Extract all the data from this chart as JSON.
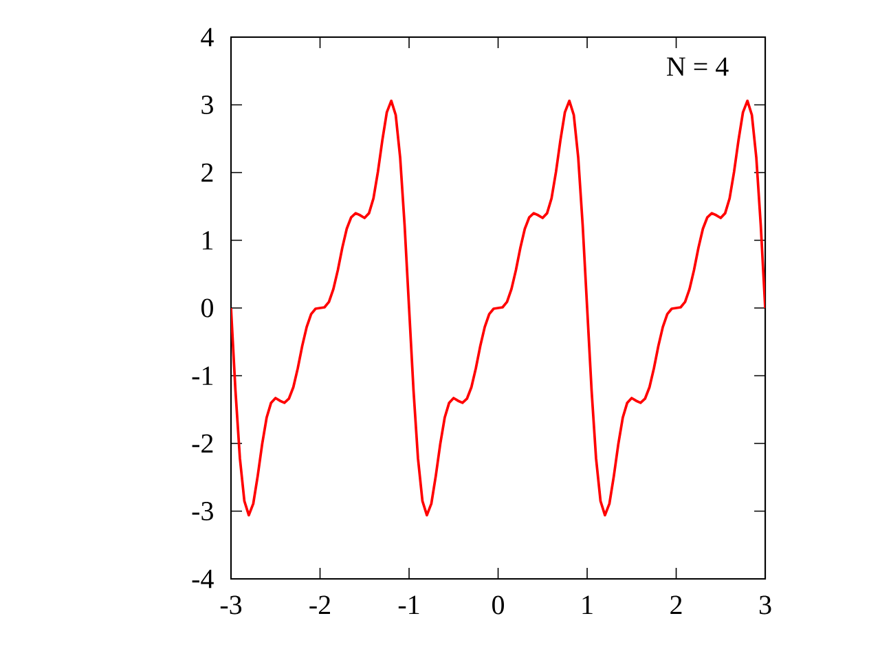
{
  "chart_data": {
    "type": "line",
    "annotations": [
      "N = 4"
    ],
    "x": [
      -3,
      -2.95,
      -2.9,
      -2.85,
      -2.8,
      -2.75,
      -2.7,
      -2.65,
      -2.6,
      -2.55,
      -2.5,
      -2.45,
      -2.4,
      -2.35,
      -2.3,
      -2.25,
      -2.2,
      -2.15,
      -2.1,
      -2.05,
      -2,
      -1.95,
      -1.9,
      -1.85,
      -1.8,
      -1.75,
      -1.7,
      -1.65,
      -1.6,
      -1.55,
      -1.5,
      -1.45,
      -1.4,
      -1.35,
      -1.3,
      -1.25,
      -1.2,
      -1.15,
      -1.1,
      -1.05,
      -1,
      -0.95,
      -0.9,
      -0.85,
      -0.8,
      -0.75,
      -0.7,
      -0.65,
      -0.6,
      -0.55,
      -0.5,
      -0.45,
      -0.4,
      -0.35,
      -0.3,
      -0.25,
      -0.2,
      -0.15,
      -0.1,
      -0.05,
      0,
      0.05,
      0.1,
      0.15,
      0.2,
      0.25,
      0.3,
      0.35,
      0.4,
      0.45,
      0.5,
      0.55,
      0.6,
      0.65,
      0.7,
      0.75,
      0.8,
      0.85,
      0.9,
      0.95,
      1,
      1.05,
      1.1,
      1.15,
      1.2,
      1.25,
      1.3,
      1.35,
      1.4,
      1.45,
      1.5,
      1.55,
      1.6,
      1.65,
      1.7,
      1.75,
      1.8,
      1.85,
      1.9,
      1.95,
      2,
      2.05,
      2.1,
      2.15,
      2.2,
      2.25,
      2.3,
      2.35,
      2.4,
      2.45,
      2.5,
      2.55,
      2.6,
      2.65,
      2.7,
      2.75,
      2.8,
      2.85,
      2.9,
      2.95,
      3
    ],
    "series": [
      {
        "color": "#ff0000",
        "values": [
          0,
          -1.22,
          -2.22,
          -2.85,
          -3.06,
          -2.89,
          -2.48,
          -2.01,
          -1.62,
          -1.4,
          -1.33,
          -1.37,
          -1.4,
          -1.34,
          -1.17,
          -0.89,
          -0.56,
          -0.28,
          -0.09,
          -0.01,
          0,
          0.01,
          0.09,
          0.28,
          0.56,
          0.89,
          1.17,
          1.34,
          1.4,
          1.37,
          1.33,
          1.4,
          1.62,
          2.01,
          2.48,
          2.89,
          3.06,
          2.85,
          2.22,
          1.22,
          0,
          -1.22,
          -2.22,
          -2.85,
          -3.06,
          -2.89,
          -2.48,
          -2.01,
          -1.62,
          -1.4,
          -1.33,
          -1.37,
          -1.4,
          -1.34,
          -1.17,
          -0.89,
          -0.56,
          -0.28,
          -0.09,
          -0.01,
          0,
          0.01,
          0.09,
          0.28,
          0.56,
          0.89,
          1.17,
          1.34,
          1.4,
          1.37,
          1.33,
          1.4,
          1.62,
          2.01,
          2.48,
          2.89,
          3.06,
          2.85,
          2.22,
          1.22,
          0,
          -1.22,
          -2.22,
          -2.85,
          -3.06,
          -2.89,
          -2.48,
          -2.01,
          -1.62,
          -1.4,
          -1.33,
          -1.37,
          -1.4,
          -1.34,
          -1.17,
          -0.89,
          -0.56,
          -0.28,
          -0.09,
          -0.01,
          0,
          0.01,
          0.09,
          0.28,
          0.56,
          0.89,
          1.17,
          1.34,
          1.4,
          1.37,
          1.33,
          1.4,
          1.62,
          2.01,
          2.48,
          2.89,
          3.06,
          2.85,
          2.22,
          1.22,
          0
        ]
      }
    ],
    "xlim": [
      -3,
      3
    ],
    "ylim": [
      -4,
      4
    ],
    "xticks": [
      -3,
      -2,
      -1,
      0,
      1,
      2,
      3
    ],
    "yticks": [
      -4,
      -3,
      -2,
      -1,
      0,
      1,
      2,
      3,
      4
    ],
    "grid": false,
    "marker": "none",
    "line_style": "solid"
  }
}
